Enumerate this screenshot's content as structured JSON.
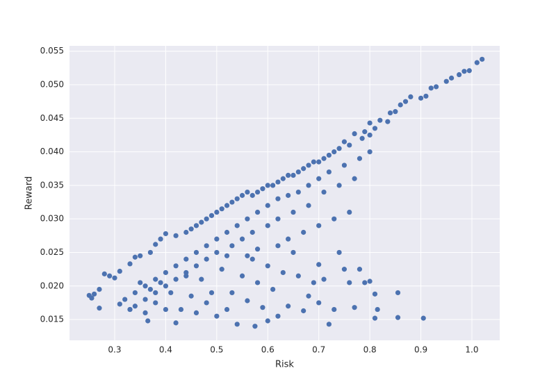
{
  "chart_data": {
    "type": "scatter",
    "xlabel": "Risk",
    "ylabel": "Reward",
    "color": "#4c72b0",
    "grid": true,
    "xlim": [
      0.2115,
      1.0545
    ],
    "ylim": [
      0.0119,
      0.0558
    ],
    "xticks": [
      0.3,
      0.4,
      0.5,
      0.6,
      0.7,
      0.8,
      0.9,
      {
        "value": 1,
        "label": "1.0"
      }
    ],
    "yticks": [
      0.015,
      {
        "value": 0.02,
        "label": "0.020"
      },
      0.025,
      {
        "value": 0.03,
        "label": "0.030"
      },
      0.035,
      {
        "value": 0.04,
        "label": "0.040"
      },
      0.045,
      {
        "value": 0.05,
        "label": "0.050"
      },
      0.055
    ],
    "x": [
      1.02,
      1.01,
      0.995,
      0.985,
      0.975,
      0.96,
      0.95,
      0.93,
      0.92,
      0.91,
      0.9,
      0.88,
      0.87,
      0.86,
      0.85,
      0.84,
      0.835,
      0.82,
      0.81,
      0.8,
      0.8,
      0.79,
      0.785,
      0.77,
      0.76,
      0.75,
      0.74,
      0.73,
      0.72,
      0.71,
      0.7,
      0.69,
      0.68,
      0.67,
      0.66,
      0.65,
      0.64,
      0.63,
      0.62,
      0.61,
      0.6,
      0.59,
      0.58,
      0.57,
      0.56,
      0.55,
      0.54,
      0.53,
      0.52,
      0.51,
      0.5,
      0.49,
      0.48,
      0.47,
      0.46,
      0.45,
      0.44,
      0.42,
      0.4,
      0.39,
      0.38,
      0.37,
      0.35,
      0.34,
      0.33,
      0.31,
      0.29,
      0.28,
      0.27,
      0.26,
      0.255,
      0.25,
      0.27,
      0.72,
      0.7,
      0.68,
      0.66,
      0.64,
      0.62,
      0.6,
      0.58,
      0.56,
      0.54,
      0.52,
      0.5,
      0.48,
      0.46,
      0.44,
      0.42,
      0.4,
      0.38,
      0.36,
      0.34,
      0.32,
      0.75,
      0.78,
      0.8,
      0.77,
      0.74,
      0.71,
      0.68,
      0.65,
      0.62,
      0.6,
      0.57,
      0.55,
      0.53,
      0.5,
      0.48,
      0.46,
      0.44,
      0.42,
      0.4,
      0.38,
      0.36,
      0.34,
      0.33,
      0.905,
      0.855,
      0.855,
      0.81,
      0.815,
      0.81,
      0.8,
      0.79,
      0.78,
      0.77,
      0.76,
      0.75,
      0.74,
      0.73,
      0.72,
      0.71,
      0.7,
      0.7,
      0.69,
      0.68,
      0.67,
      0.66,
      0.65,
      0.64,
      0.63,
      0.62,
      0.61,
      0.6,
      0.6,
      0.59,
      0.58,
      0.575,
      0.57,
      0.56,
      0.55,
      0.54,
      0.53,
      0.52,
      0.51,
      0.5,
      0.49,
      0.48,
      0.47,
      0.46,
      0.45,
      0.44,
      0.43,
      0.42,
      0.41,
      0.4,
      0.39,
      0.38,
      0.37,
      0.36,
      0.365,
      0.35,
      0.33,
      0.31,
      0.3,
      0.52,
      0.58,
      0.64,
      0.7,
      0.76,
      0.56,
      0.62,
      0.67,
      0.73
    ],
    "values": [
      0.0538,
      0.0533,
      0.0521,
      0.052,
      0.0515,
      0.051,
      0.0505,
      0.0497,
      0.0495,
      0.0483,
      0.048,
      0.0482,
      0.0475,
      0.047,
      0.046,
      0.0458,
      0.0445,
      0.0447,
      0.0435,
      0.0443,
      0.0425,
      0.043,
      0.042,
      0.0427,
      0.041,
      0.0415,
      0.0405,
      0.04,
      0.0395,
      0.039,
      0.0385,
      0.0385,
      0.038,
      0.0375,
      0.037,
      0.0365,
      0.0365,
      0.036,
      0.0355,
      0.035,
      0.035,
      0.0345,
      0.034,
      0.0335,
      0.034,
      0.0335,
      0.033,
      0.0325,
      0.032,
      0.0315,
      0.031,
      0.0305,
      0.03,
      0.0295,
      0.029,
      0.0285,
      0.028,
      0.0275,
      0.0278,
      0.027,
      0.0262,
      0.025,
      0.0245,
      0.0243,
      0.0233,
      0.0222,
      0.0215,
      0.0218,
      0.0195,
      0.0188,
      0.0182,
      0.0186,
      0.0167,
      0.037,
      0.036,
      0.035,
      0.034,
      0.0335,
      0.033,
      0.032,
      0.031,
      0.03,
      0.029,
      0.028,
      0.027,
      0.026,
      0.025,
      0.024,
      0.023,
      0.022,
      0.021,
      0.02,
      0.019,
      0.018,
      0.038,
      0.039,
      0.04,
      0.036,
      0.035,
      0.034,
      0.032,
      0.031,
      0.03,
      0.029,
      0.028,
      0.027,
      0.026,
      0.025,
      0.024,
      0.023,
      0.022,
      0.021,
      0.02,
      0.019,
      0.018,
      0.017,
      0.0165,
      0.0152,
      0.0153,
      0.019,
      0.0152,
      0.0165,
      0.0188,
      0.0207,
      0.0205,
      0.0225,
      0.0168,
      0.0205,
      0.0225,
      0.025,
      0.0165,
      0.0143,
      0.021,
      0.0175,
      0.0232,
      0.0205,
      0.0185,
      0.0163,
      0.0215,
      0.025,
      0.017,
      0.022,
      0.0155,
      0.0195,
      0.0148,
      0.023,
      0.0168,
      0.0205,
      0.014,
      0.024,
      0.0178,
      0.0215,
      0.0143,
      0.019,
      0.0165,
      0.0225,
      0.0155,
      0.019,
      0.0175,
      0.021,
      0.016,
      0.0185,
      0.0215,
      0.0165,
      0.0145,
      0.019,
      0.0165,
      0.0205,
      0.0175,
      0.0195,
      0.016,
      0.0148,
      0.0205,
      0.0165,
      0.0173,
      0.0212,
      0.0245,
      0.0255,
      0.027,
      0.029,
      0.031,
      0.0245,
      0.026,
      0.028,
      0.03
    ]
  }
}
